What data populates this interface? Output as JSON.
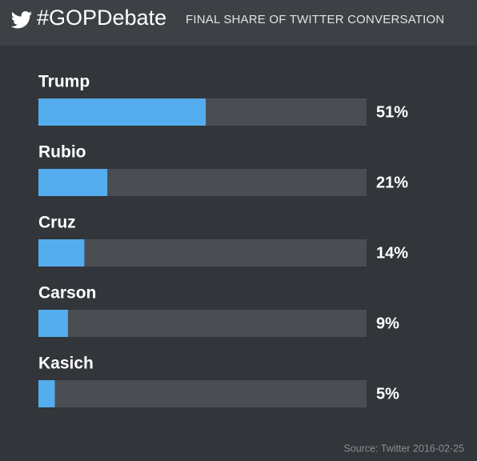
{
  "chart_data": {
    "type": "bar",
    "title": "#GOPDebate",
    "subtitle": "FINAL SHARE OF TWITTER CONVERSATION",
    "categories": [
      "Trump",
      "Rubio",
      "Cruz",
      "Carson",
      "Kasich"
    ],
    "values": [
      51,
      21,
      14,
      9,
      5
    ],
    "value_labels": [
      "51%",
      "21%",
      "14%",
      "9%",
      "5%"
    ],
    "color": "#55acee",
    "xlim": [
      0,
      100
    ],
    "source": "Source: Twitter 2016-02-25"
  }
}
